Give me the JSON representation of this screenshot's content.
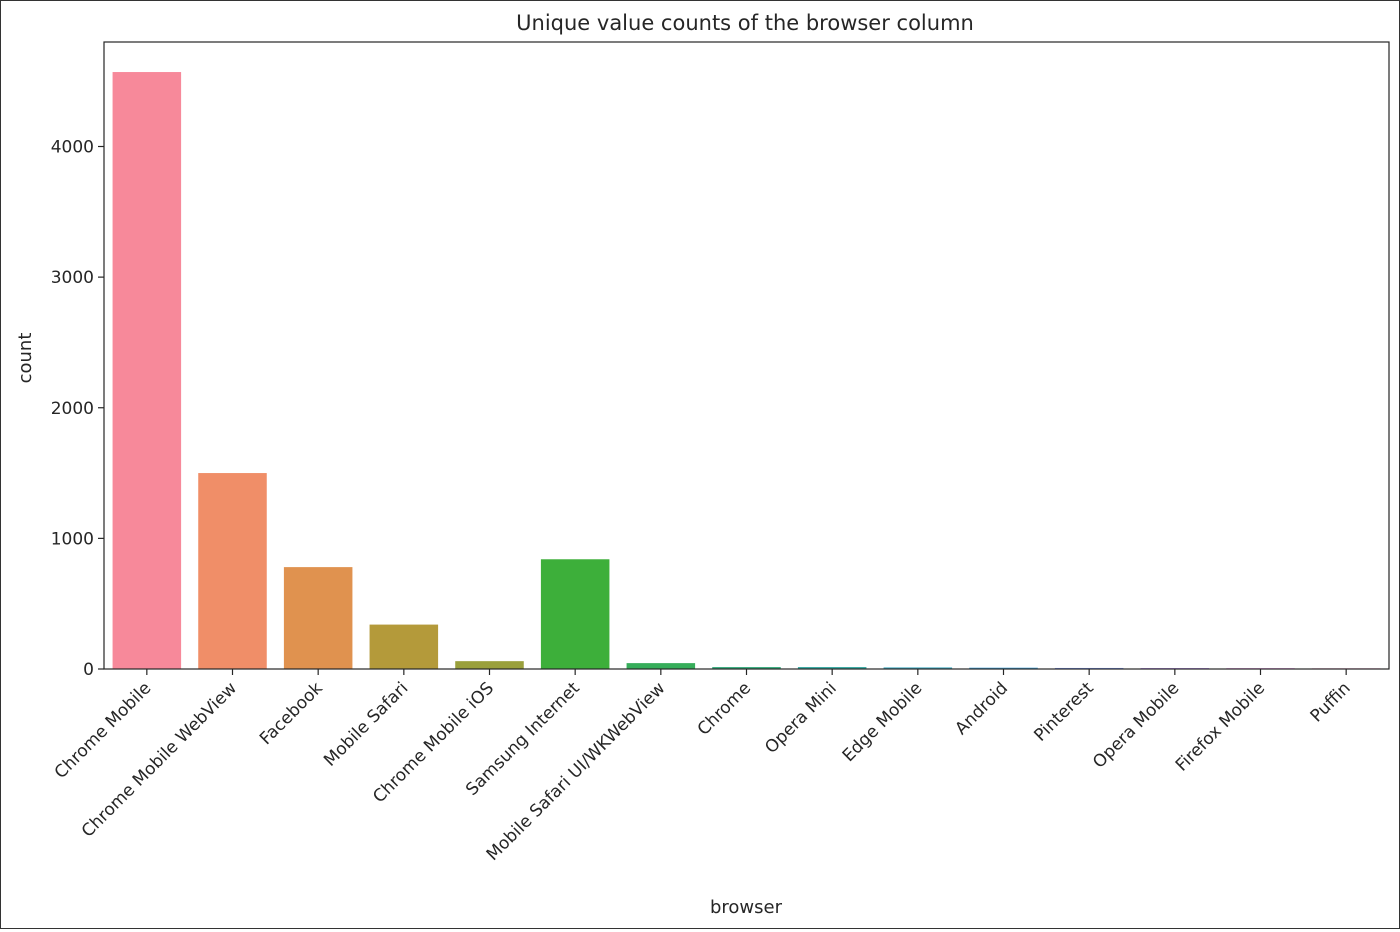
{
  "chart_data": {
    "type": "bar",
    "title": "Unique value counts of the browser column",
    "xlabel": "browser",
    "ylabel": "count",
    "ylim": [
      0,
      4800
    ],
    "yticks": [
      0,
      1000,
      2000,
      3000,
      4000
    ],
    "grid": false,
    "legend": "none",
    "categories": [
      "Chrome Mobile",
      "Chrome Mobile WebView",
      "Facebook",
      "Mobile Safari",
      "Chrome Mobile iOS",
      "Samsung Internet",
      "Mobile Safari UI/WKWebView",
      "Chrome",
      "Opera Mini",
      "Edge Mobile",
      "Android",
      "Pinterest",
      "Opera Mobile",
      "Firefox Mobile",
      "Puffin"
    ],
    "values": [
      4570,
      1500,
      780,
      340,
      60,
      840,
      45,
      15,
      15,
      12,
      10,
      8,
      7,
      6,
      5
    ],
    "colors": [
      "#f7899a",
      "#f08e68",
      "#e0924f",
      "#b49a3a",
      "#9aa03c",
      "#3daf3a",
      "#36ad5a",
      "#39ab7e",
      "#38a8a0",
      "#3aa5bc",
      "#3f9fd5",
      "#7e94f0",
      "#b486f3",
      "#e87ce8",
      "#f57cbc"
    ]
  }
}
